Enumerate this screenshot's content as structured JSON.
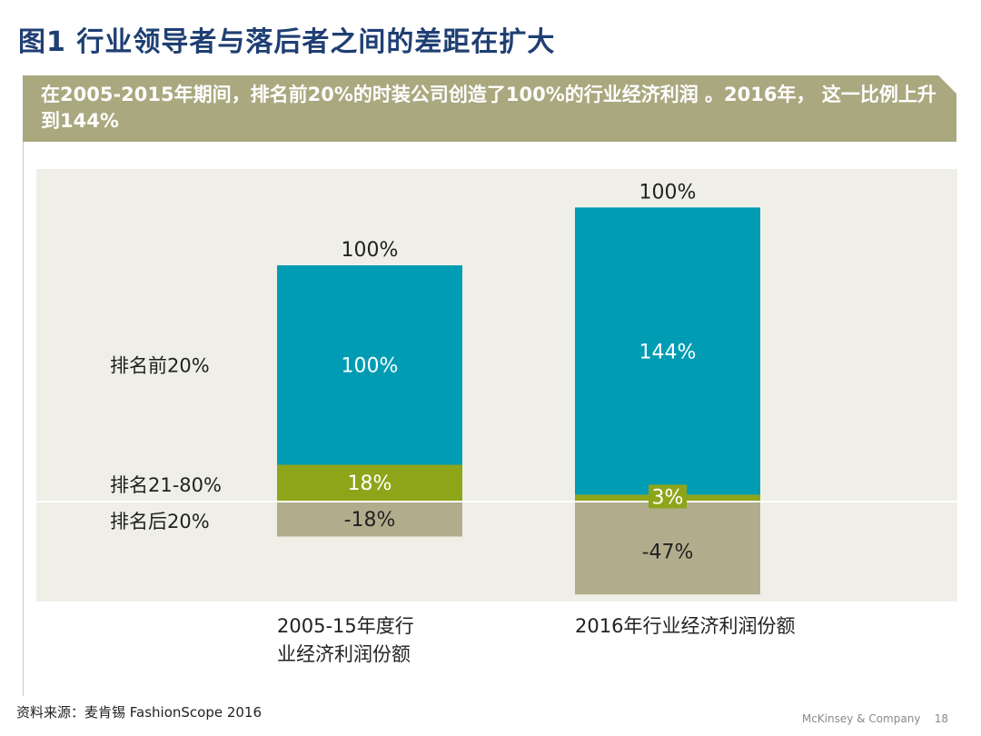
{
  "title": "图1 行业领导者与落后者之间的差距在扩大",
  "banner": "在2005-2015年期间，排名前20%的时装公司创造了100%的行业经济利润 。2016年， 这一比例上升到144%",
  "source": "资料来源：麦肯锡 FashionScope 2016",
  "footer": {
    "company": "McKinsey & Company",
    "page": "18"
  },
  "colors": {
    "top20": "#009cb4",
    "mid": "#8ea51a",
    "bottom20": "#b1ad8c",
    "panel": "#efefe8",
    "title": "#1f3f73",
    "banner": "#a9a87f"
  },
  "chart_data": {
    "type": "bar",
    "stacked": true,
    "categories": [
      "2005-15年度行业经济利润份额",
      "2016年行业经济利润份额"
    ],
    "category_lines": [
      [
        "2005-15年度行",
        "业经济利润份额"
      ],
      [
        "2016年行业经济利润份额"
      ]
    ],
    "series": [
      {
        "name": "排名前20%",
        "values": [
          100,
          144
        ],
        "labels": [
          "100%",
          "144%"
        ]
      },
      {
        "name": "排名21-80%",
        "values": [
          18,
          3
        ],
        "labels": [
          "18%",
          "3%"
        ]
      },
      {
        "name": "排名后20%",
        "values": [
          -18,
          -47
        ],
        "labels": [
          "-18%",
          "-47%"
        ]
      }
    ],
    "totals": [
      "100%",
      "100%"
    ],
    "ylim": [
      -50,
      165
    ],
    "grid": false
  }
}
